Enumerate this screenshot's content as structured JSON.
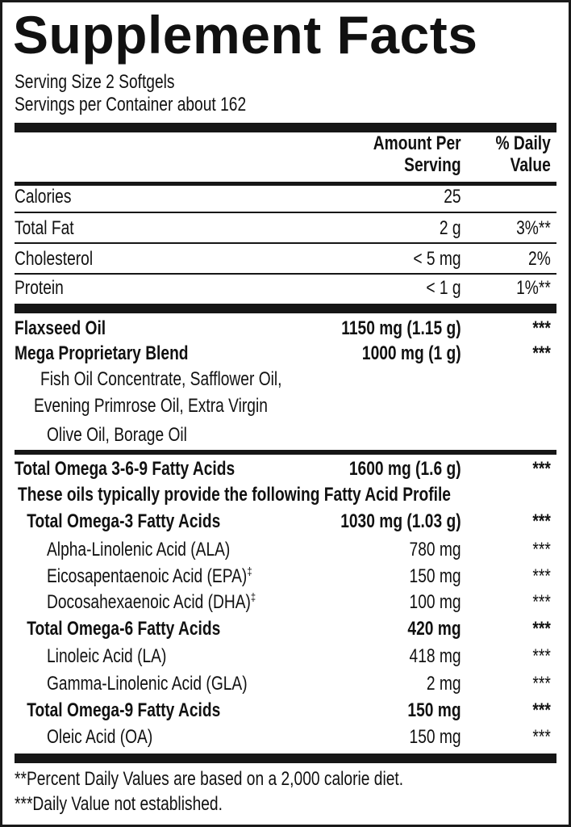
{
  "title": "Supplement Facts",
  "serving_size": "Serving Size 2 Softgels",
  "servings_per_container": "Servings per Container about 162",
  "header": {
    "amount_line1": "Amount Per",
    "amount_line2": "Serving",
    "dv_line1": "% Daily",
    "dv_line2": "Value"
  },
  "nutrients": [
    {
      "name": "Calories",
      "amount": "25",
      "dv": ""
    },
    {
      "name": "Total Fat",
      "amount": "2 g",
      "dv": "3%**"
    },
    {
      "name": "Cholesterol",
      "amount": "< 5 mg",
      "dv": "2%"
    },
    {
      "name": "Protein",
      "amount": "< 1 g",
      "dv": "1%**"
    }
  ],
  "oils": [
    {
      "name": "Flaxseed Oil",
      "amount": "1150 mg (1.15 g)",
      "dv": "***"
    },
    {
      "name": "Mega Proprietary Blend",
      "amount": "1000 mg (1 g)",
      "dv": "***"
    }
  ],
  "blend_ingredients": [
    "Fish Oil Concentrate, Safflower Oil,",
    "Evening Primrose Oil, Extra Virgin",
    "Olive Oil, Borage Oil"
  ],
  "total_omega": {
    "name": "Total Omega 3-6-9 Fatty Acids",
    "amount": "1600 mg (1.6 g)",
    "dv": "***"
  },
  "profile_note": "These oils typically provide the following Fatty Acid Profile",
  "fatty_acids": [
    {
      "name": "Total Omega-3 Fatty Acids",
      "amount": "1030 mg (1.03 g)",
      "dv": "***"
    },
    {
      "name": "Alpha-Linolenic Acid (ALA)",
      "amount": "780 mg",
      "dv": "***"
    },
    {
      "name": "Eicosapentaenoic Acid (EPA)",
      "mark": "‡",
      "amount": "150 mg",
      "dv": "***"
    },
    {
      "name": "Docosahexaenoic Acid (DHA)",
      "mark": "‡",
      "amount": "100 mg",
      "dv": "***"
    },
    {
      "name": "Total Omega-6 Fatty Acids",
      "amount": "420 mg",
      "dv": "***"
    },
    {
      "name": "Linoleic Acid (LA)",
      "amount": "418 mg",
      "dv": "***"
    },
    {
      "name": "Gamma-Linolenic Acid (GLA)",
      "amount": "2 mg",
      "dv": "***"
    },
    {
      "name": "Total Omega-9 Fatty Acids",
      "amount": "150 mg",
      "dv": "***"
    },
    {
      "name": "Oleic Acid (OA)",
      "amount": "150 mg",
      "dv": "***"
    }
  ],
  "footnotes": [
    "**Percent Daily Values are based on a 2,000 calorie diet.",
    "***Daily Value not established."
  ]
}
